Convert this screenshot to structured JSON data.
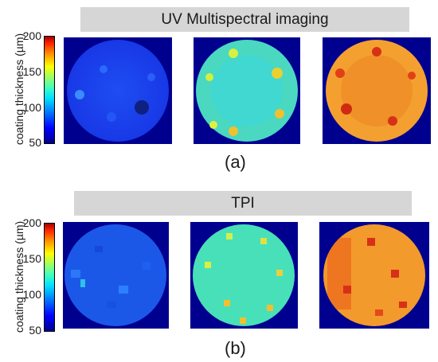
{
  "panel_a": {
    "title": "UV Multispectral imaging",
    "caption": "(a)",
    "colorbar_label": "coating thickness (µm)",
    "ticks": [
      "200",
      "150",
      "100",
      "50"
    ]
  },
  "panel_b": {
    "title": "TPI",
    "caption": "(b)",
    "colorbar_label": "coating thickness (µm)",
    "ticks": [
      "200",
      "150",
      "100",
      "50"
    ]
  },
  "colors": {
    "background_square": "#00008f",
    "map_low": "#1a3cf0",
    "map_mid": "#50e0b0",
    "map_high": "#f08a20"
  }
}
